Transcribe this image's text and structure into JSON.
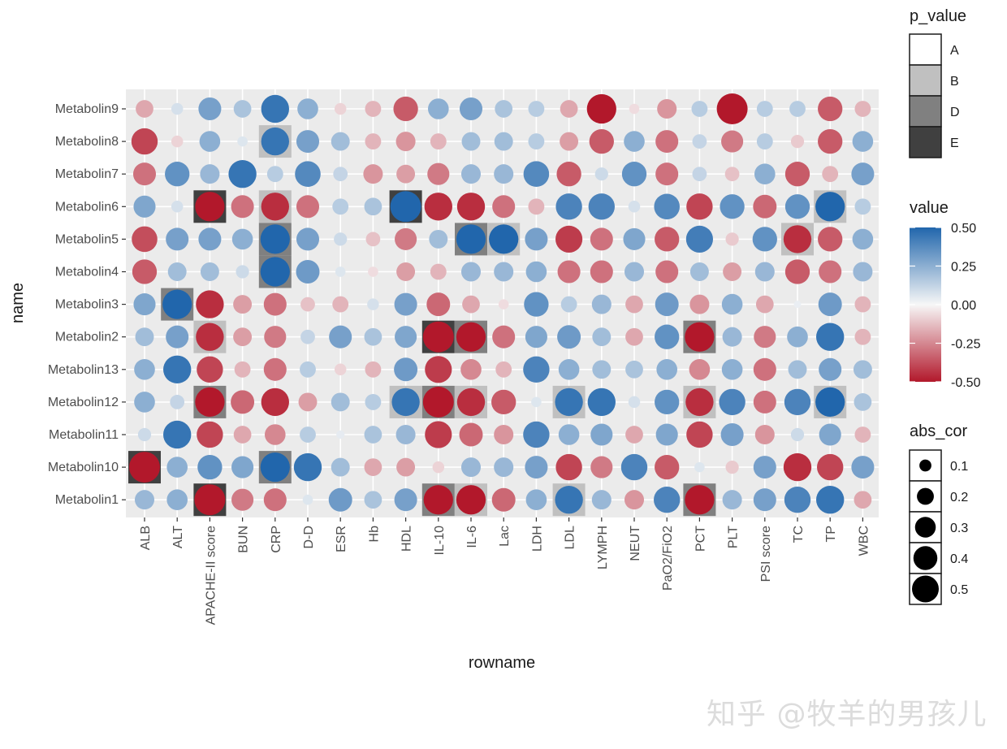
{
  "chart_data": {
    "type": "bubble-heatmap",
    "xlabel": "rowname",
    "ylabel": "name",
    "x_categories": [
      "ALB",
      "ALT",
      "APACHE-II score",
      "BUN",
      "CRP",
      "D-D",
      "ESR",
      "Hb",
      "HDL",
      "IL-10",
      "IL-6",
      "Lac",
      "LDH",
      "LDL",
      "LYMPH",
      "NEUT",
      "PaO2/FiO2",
      "PCT",
      "PLT",
      "PSI score",
      "TC",
      "TP",
      "WBC"
    ],
    "y_categories": [
      "Metabolin9",
      "Metabolin8",
      "Metabolin7",
      "Metabolin6",
      "Metabolin5",
      "Metabolin4",
      "Metabolin3",
      "Metabolin2",
      "Metabolin13",
      "Metabolin12",
      "Metabolin11",
      "Metabolin10",
      "Metabolin1"
    ],
    "values": [
      [
        -0.18,
        0.08,
        0.3,
        0.18,
        0.45,
        0.25,
        -0.08,
        -0.15,
        -0.35,
        0.25,
        0.3,
        0.18,
        0.15,
        -0.18,
        -0.5,
        -0.06,
        -0.22,
        0.15,
        -0.55,
        0.15,
        0.15,
        -0.35,
        -0.15
      ],
      [
        -0.4,
        -0.08,
        0.25,
        0.06,
        0.45,
        0.3,
        0.2,
        -0.15,
        -0.22,
        -0.15,
        0.2,
        0.2,
        0.15,
        -0.2,
        -0.35,
        0.25,
        -0.3,
        0.12,
        -0.28,
        0.15,
        -0.1,
        -0.35,
        0.25
      ],
      [
        -0.3,
        0.35,
        0.22,
        0.45,
        0.15,
        0.38,
        0.12,
        -0.22,
        -0.2,
        -0.28,
        0.22,
        0.22,
        0.38,
        -0.35,
        0.1,
        0.35,
        -0.3,
        0.12,
        -0.12,
        0.25,
        -0.35,
        -0.15,
        0.3
      ],
      [
        0.28,
        0.08,
        -0.5,
        -0.3,
        -0.45,
        -0.3,
        0.15,
        0.18,
        0.55,
        -0.45,
        -0.45,
        -0.3,
        -0.15,
        0.4,
        0.4,
        0.08,
        0.38,
        -0.4,
        0.35,
        -0.32,
        0.35,
        0.5,
        0.15
      ],
      [
        -0.38,
        0.3,
        0.3,
        0.25,
        0.5,
        0.3,
        0.1,
        -0.12,
        -0.28,
        0.2,
        0.5,
        0.5,
        0.3,
        -0.42,
        -0.3,
        0.28,
        -0.35,
        0.42,
        -0.1,
        0.35,
        -0.45,
        -0.35,
        0.25
      ],
      [
        -0.35,
        0.2,
        0.2,
        0.1,
        0.5,
        0.32,
        0.06,
        -0.06,
        -0.2,
        -0.15,
        0.22,
        0.22,
        0.25,
        -0.3,
        -0.3,
        0.22,
        -0.3,
        0.2,
        -0.2,
        0.22,
        -0.35,
        -0.3,
        0.22
      ],
      [
        0.28,
        0.5,
        -0.45,
        -0.2,
        -0.3,
        -0.12,
        -0.15,
        0.08,
        0.3,
        -0.32,
        -0.18,
        -0.06,
        0.35,
        0.15,
        0.22,
        -0.18,
        0.32,
        -0.22,
        0.25,
        -0.18,
        0.03,
        0.32,
        -0.15
      ],
      [
        0.2,
        0.3,
        -0.45,
        -0.2,
        -0.28,
        0.12,
        0.3,
        0.18,
        0.28,
        -0.55,
        -0.5,
        -0.3,
        0.28,
        0.32,
        0.2,
        -0.18,
        0.35,
        -0.5,
        0.22,
        -0.28,
        0.25,
        0.45,
        -0.15
      ],
      [
        0.25,
        0.45,
        -0.4,
        -0.15,
        -0.3,
        0.15,
        -0.08,
        -0.15,
        0.32,
        -0.42,
        -0.25,
        -0.15,
        0.4,
        0.25,
        0.2,
        0.18,
        0.25,
        -0.25,
        0.25,
        -0.3,
        0.2,
        0.3,
        0.2
      ],
      [
        0.25,
        0.12,
        -0.5,
        -0.32,
        -0.45,
        -0.2,
        0.2,
        0.15,
        0.45,
        -0.55,
        -0.45,
        -0.35,
        0.06,
        0.45,
        0.45,
        0.08,
        0.35,
        -0.45,
        0.4,
        -0.3,
        0.4,
        0.5,
        0.18
      ],
      [
        0.1,
        0.45,
        -0.4,
        -0.18,
        -0.25,
        0.15,
        0.04,
        0.18,
        0.22,
        -0.42,
        -0.32,
        -0.22,
        0.4,
        0.25,
        0.28,
        -0.18,
        0.28,
        -0.4,
        0.3,
        -0.22,
        0.1,
        0.28,
        -0.15
      ],
      [
        -0.55,
        0.25,
        0.35,
        0.28,
        0.5,
        0.45,
        0.2,
        -0.18,
        -0.2,
        -0.08,
        0.22,
        0.22,
        0.3,
        -0.4,
        -0.28,
        0.4,
        -0.35,
        0.06,
        -0.1,
        0.3,
        -0.45,
        -0.4,
        0.3
      ],
      [
        0.22,
        0.25,
        -0.55,
        -0.28,
        -0.3,
        0.06,
        0.32,
        0.18,
        0.3,
        -0.5,
        -0.5,
        -0.32,
        0.25,
        0.45,
        0.22,
        -0.22,
        0.4,
        -0.5,
        0.22,
        0.3,
        0.4,
        0.45,
        -0.18
      ]
    ],
    "p_value": [
      [
        "A",
        "A",
        "A",
        "A",
        "A",
        "A",
        "A",
        "A",
        "A",
        "A",
        "A",
        "A",
        "A",
        "A",
        "A",
        "A",
        "A",
        "A",
        "A",
        "A",
        "A",
        "A",
        "A"
      ],
      [
        "A",
        "A",
        "A",
        "A",
        "B",
        "A",
        "A",
        "A",
        "A",
        "A",
        "A",
        "A",
        "A",
        "A",
        "A",
        "A",
        "A",
        "A",
        "A",
        "A",
        "A",
        "A",
        "A"
      ],
      [
        "A",
        "A",
        "A",
        "A",
        "A",
        "A",
        "A",
        "A",
        "A",
        "A",
        "A",
        "A",
        "A",
        "A",
        "A",
        "A",
        "A",
        "A",
        "A",
        "A",
        "A",
        "A",
        "A"
      ],
      [
        "A",
        "A",
        "E",
        "A",
        "B",
        "A",
        "A",
        "A",
        "E",
        "A",
        "A",
        "A",
        "A",
        "A",
        "A",
        "A",
        "A",
        "A",
        "A",
        "A",
        "A",
        "B",
        "A"
      ],
      [
        "A",
        "A",
        "A",
        "A",
        "D",
        "A",
        "A",
        "A",
        "A",
        "A",
        "D",
        "B",
        "A",
        "A",
        "A",
        "A",
        "A",
        "A",
        "A",
        "A",
        "B",
        "A",
        "A"
      ],
      [
        "A",
        "A",
        "A",
        "A",
        "D",
        "A",
        "A",
        "A",
        "A",
        "A",
        "A",
        "A",
        "A",
        "A",
        "A",
        "A",
        "A",
        "A",
        "A",
        "A",
        "A",
        "A",
        "A"
      ],
      [
        "A",
        "D",
        "A",
        "A",
        "A",
        "A",
        "A",
        "A",
        "A",
        "A",
        "A",
        "A",
        "A",
        "A",
        "A",
        "A",
        "A",
        "A",
        "A",
        "A",
        "A",
        "A",
        "A"
      ],
      [
        "A",
        "A",
        "B",
        "A",
        "A",
        "A",
        "A",
        "A",
        "A",
        "E",
        "D",
        "A",
        "A",
        "A",
        "A",
        "A",
        "A",
        "D",
        "A",
        "A",
        "A",
        "A",
        "A"
      ],
      [
        "A",
        "A",
        "A",
        "A",
        "A",
        "A",
        "A",
        "A",
        "A",
        "A",
        "A",
        "A",
        "A",
        "A",
        "A",
        "A",
        "A",
        "A",
        "A",
        "A",
        "A",
        "A",
        "A"
      ],
      [
        "A",
        "A",
        "D",
        "A",
        "A",
        "A",
        "A",
        "A",
        "B",
        "D",
        "B",
        "A",
        "A",
        "B",
        "A",
        "A",
        "A",
        "B",
        "A",
        "A",
        "A",
        "B",
        "A"
      ],
      [
        "A",
        "A",
        "A",
        "A",
        "A",
        "A",
        "A",
        "A",
        "A",
        "A",
        "A",
        "A",
        "A",
        "A",
        "A",
        "A",
        "A",
        "A",
        "A",
        "A",
        "A",
        "A",
        "A"
      ],
      [
        "E",
        "A",
        "A",
        "A",
        "D",
        "A",
        "A",
        "A",
        "A",
        "A",
        "A",
        "A",
        "A",
        "A",
        "A",
        "A",
        "A",
        "A",
        "A",
        "A",
        "A",
        "A",
        "A"
      ],
      [
        "A",
        "A",
        "E",
        "A",
        "A",
        "A",
        "A",
        "A",
        "A",
        "D",
        "B",
        "A",
        "A",
        "B",
        "A",
        "A",
        "A",
        "D",
        "A",
        "A",
        "A",
        "A",
        "A"
      ]
    ],
    "legend_p_value": {
      "title": "p_value",
      "items": [
        {
          "label": "A",
          "color": "#ffffff"
        },
        {
          "label": "B",
          "color": "#c0c0c0"
        },
        {
          "label": "D",
          "color": "#808080"
        },
        {
          "label": "E",
          "color": "#404040"
        }
      ]
    },
    "legend_value": {
      "title": "value",
      "ticks": [
        "0.50",
        "0.25",
        "0.00",
        "-0.25",
        "-0.50"
      ],
      "range": [
        -0.5,
        0.5
      ],
      "colors": {
        "low": "#b2182b",
        "mid": "#f7f7f7",
        "high": "#2166ac"
      }
    },
    "legend_abs_cor": {
      "title": "abs_cor",
      "items": [
        "0.1",
        "0.2",
        "0.3",
        "0.4",
        "0.5"
      ]
    },
    "tile_colors": {
      "A": "#ffffff",
      "B": "#c0c0c0",
      "D": "#808080",
      "E": "#404040"
    },
    "panel_background": "#ebebeb",
    "grid": true,
    "legend_position": "right"
  },
  "watermark": "知乎 @牧羊的男孩儿"
}
